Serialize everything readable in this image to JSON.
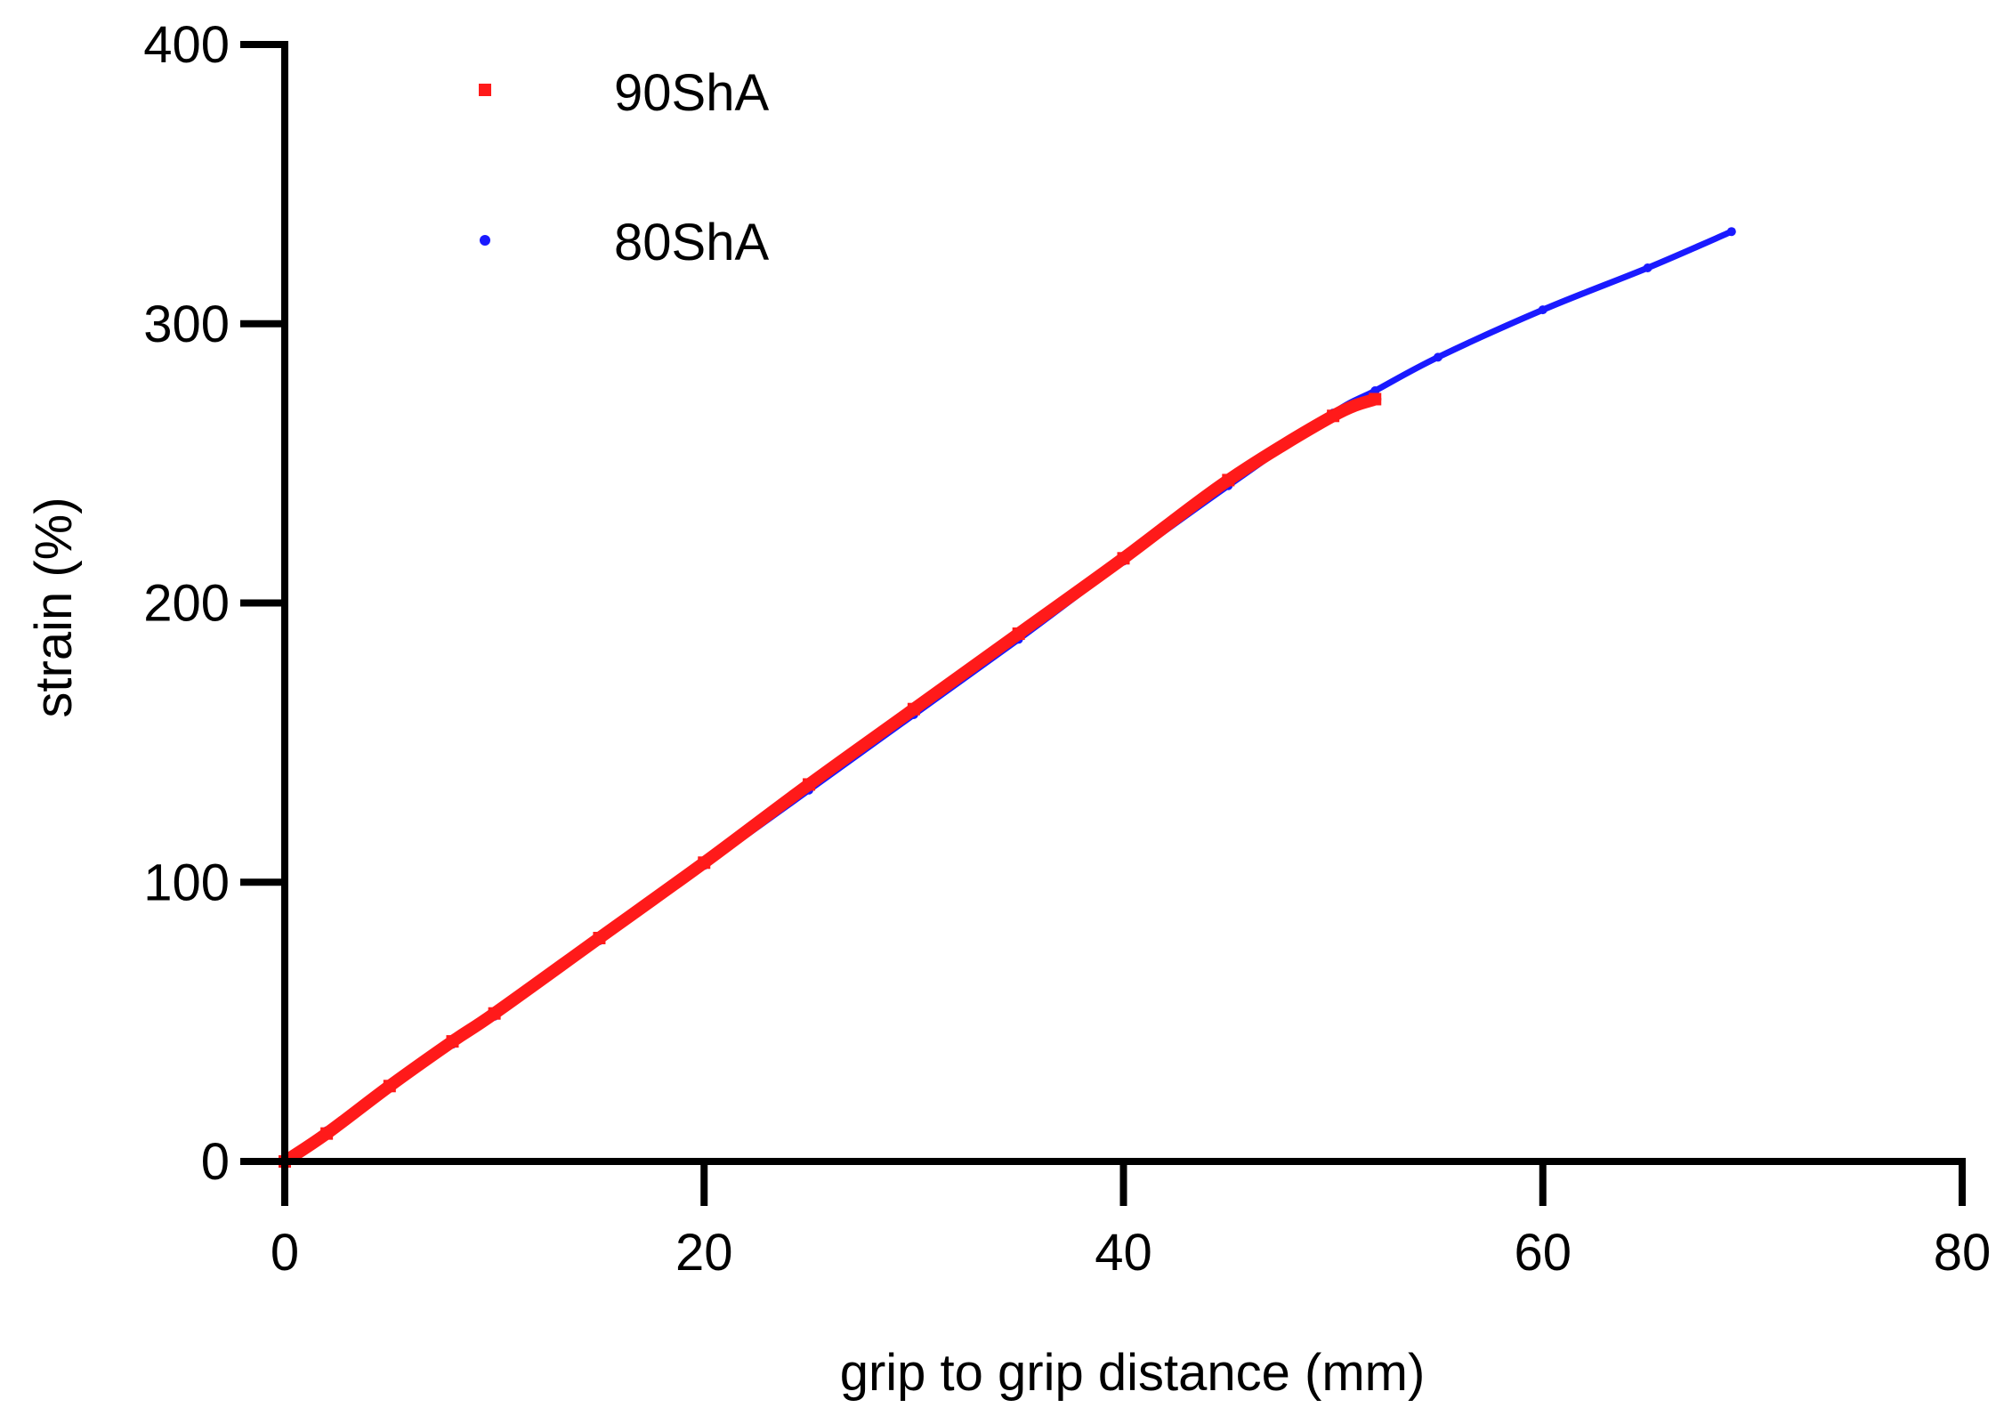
{
  "chart_data": {
    "type": "scatter",
    "title": "",
    "xlabel": "grip to grip distance (mm)",
    "ylabel": "strain (%)",
    "xlim": [
      0,
      80
    ],
    "ylim": [
      0,
      400
    ],
    "xticks": [
      0,
      20,
      40,
      60,
      80
    ],
    "yticks": [
      0,
      100,
      200,
      300,
      400
    ],
    "xtick_labels": [
      "0",
      "20",
      "40",
      "60",
      "80"
    ],
    "ytick_labels": [
      "0",
      "100",
      "200",
      "300",
      "400"
    ],
    "grid": false,
    "legend": {
      "position": "top-left",
      "entries": [
        "90ShA",
        "80ShA"
      ]
    },
    "series": [
      {
        "name": "80ShA",
        "color": "#1a1aff",
        "marker": "circle",
        "x": [
          0,
          2,
          5,
          8,
          10,
          15,
          20,
          25,
          30,
          35,
          40,
          45,
          50,
          52,
          55,
          60,
          65,
          69
        ],
        "y": [
          0,
          11,
          27,
          42,
          52,
          79,
          106,
          133,
          160,
          187,
          215,
          242,
          268,
          276,
          288,
          305,
          320,
          333
        ]
      },
      {
        "name": "90ShA",
        "color": "#ff1a1a",
        "marker": "square",
        "x": [
          0,
          2,
          5,
          8,
          10,
          15,
          20,
          25,
          30,
          35,
          40,
          45,
          50,
          52
        ],
        "y": [
          0,
          10,
          27,
          43,
          53,
          80,
          107,
          135,
          162,
          189,
          216,
          244,
          267,
          273
        ]
      }
    ]
  }
}
